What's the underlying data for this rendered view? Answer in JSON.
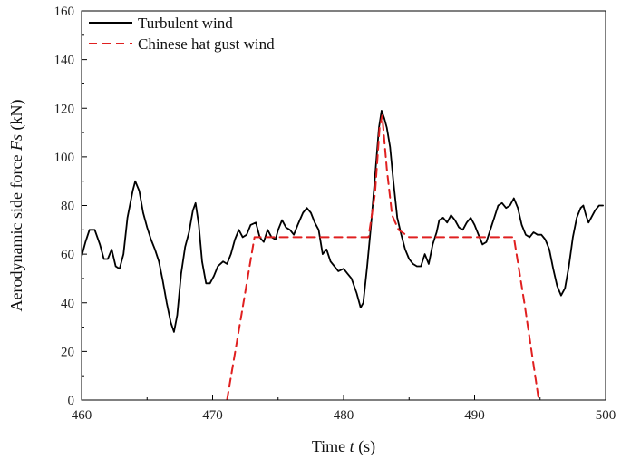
{
  "chart_data": {
    "type": "line",
    "title": "",
    "xlabel_parts": [
      "Time ",
      "t",
      " (s)"
    ],
    "ylabel_parts": [
      "Aerodynamic side force ",
      "Fs",
      " (kN)"
    ],
    "xlim": [
      460,
      500
    ],
    "ylim": [
      0,
      160
    ],
    "xticks": [
      460,
      470,
      480,
      490,
      500
    ],
    "yticks": [
      0,
      20,
      40,
      60,
      80,
      100,
      120,
      140,
      160
    ],
    "grid": false,
    "legend_position": "top-left",
    "series": [
      {
        "name": "Turbulent wind",
        "color": "#000000",
        "dash": "solid",
        "points": [
          [
            460.0,
            59
          ],
          [
            460.3,
            65
          ],
          [
            460.6,
            70
          ],
          [
            461.0,
            70
          ],
          [
            461.4,
            64
          ],
          [
            461.7,
            58
          ],
          [
            462.0,
            58
          ],
          [
            462.3,
            62
          ],
          [
            462.6,
            55
          ],
          [
            462.9,
            54
          ],
          [
            463.2,
            60
          ],
          [
            463.5,
            75
          ],
          [
            463.9,
            86
          ],
          [
            464.1,
            90
          ],
          [
            464.4,
            86
          ],
          [
            464.7,
            77
          ],
          [
            465.0,
            71
          ],
          [
            465.3,
            66
          ],
          [
            465.6,
            62
          ],
          [
            465.9,
            57
          ],
          [
            466.2,
            49
          ],
          [
            466.5,
            40
          ],
          [
            466.8,
            32
          ],
          [
            467.05,
            28
          ],
          [
            467.3,
            35
          ],
          [
            467.6,
            52
          ],
          [
            467.9,
            63
          ],
          [
            468.2,
            69
          ],
          [
            468.5,
            78
          ],
          [
            468.7,
            81
          ],
          [
            468.95,
            72
          ],
          [
            469.2,
            57
          ],
          [
            469.5,
            48
          ],
          [
            469.8,
            48
          ],
          [
            470.1,
            51
          ],
          [
            470.4,
            55
          ],
          [
            470.8,
            57
          ],
          [
            471.1,
            56
          ],
          [
            471.4,
            60
          ],
          [
            471.7,
            66
          ],
          [
            472.0,
            70
          ],
          [
            472.3,
            67
          ],
          [
            472.6,
            68
          ],
          [
            472.9,
            72
          ],
          [
            473.3,
            73
          ],
          [
            473.6,
            67
          ],
          [
            473.9,
            65
          ],
          [
            474.2,
            70
          ],
          [
            474.5,
            67
          ],
          [
            474.8,
            66
          ],
          [
            475.0,
            70
          ],
          [
            475.3,
            74
          ],
          [
            475.6,
            71
          ],
          [
            475.9,
            70
          ],
          [
            476.2,
            68
          ],
          [
            476.5,
            72
          ],
          [
            476.9,
            77
          ],
          [
            477.2,
            79
          ],
          [
            477.5,
            77
          ],
          [
            477.8,
            73
          ],
          [
            478.1,
            70
          ],
          [
            478.4,
            60
          ],
          [
            478.7,
            62
          ],
          [
            479.0,
            57
          ],
          [
            479.3,
            55
          ],
          [
            479.6,
            53
          ],
          [
            480.0,
            54
          ],
          [
            480.3,
            52
          ],
          [
            480.6,
            50
          ],
          [
            481.0,
            44
          ],
          [
            481.3,
            38
          ],
          [
            481.5,
            40
          ],
          [
            481.8,
            55
          ],
          [
            482.1,
            72
          ],
          [
            482.4,
            92
          ],
          [
            482.7,
            112
          ],
          [
            482.9,
            119
          ],
          [
            483.1,
            116
          ],
          [
            483.3,
            112
          ],
          [
            483.55,
            104
          ],
          [
            483.8,
            90
          ],
          [
            484.1,
            75
          ],
          [
            484.4,
            68
          ],
          [
            484.7,
            62
          ],
          [
            485.0,
            58
          ],
          [
            485.3,
            56
          ],
          [
            485.6,
            55
          ],
          [
            485.9,
            55
          ],
          [
            486.2,
            60
          ],
          [
            486.5,
            56
          ],
          [
            486.8,
            64
          ],
          [
            487.1,
            69
          ],
          [
            487.3,
            74
          ],
          [
            487.6,
            75
          ],
          [
            487.9,
            73
          ],
          [
            488.2,
            76
          ],
          [
            488.5,
            74
          ],
          [
            488.8,
            71
          ],
          [
            489.1,
            70
          ],
          [
            489.4,
            73
          ],
          [
            489.7,
            75
          ],
          [
            490.0,
            72
          ],
          [
            490.3,
            68
          ],
          [
            490.6,
            64
          ],
          [
            490.9,
            65
          ],
          [
            491.2,
            70
          ],
          [
            491.5,
            75
          ],
          [
            491.8,
            80
          ],
          [
            492.1,
            81
          ],
          [
            492.4,
            79
          ],
          [
            492.7,
            80
          ],
          [
            493.0,
            83
          ],
          [
            493.3,
            79
          ],
          [
            493.6,
            72
          ],
          [
            493.9,
            68
          ],
          [
            494.2,
            67
          ],
          [
            494.5,
            69
          ],
          [
            494.8,
            68
          ],
          [
            495.1,
            68
          ],
          [
            495.4,
            66
          ],
          [
            495.7,
            62
          ],
          [
            496.0,
            54
          ],
          [
            496.3,
            47
          ],
          [
            496.6,
            43
          ],
          [
            496.9,
            46
          ],
          [
            497.2,
            55
          ],
          [
            497.5,
            67
          ],
          [
            497.8,
            75
          ],
          [
            498.1,
            79
          ],
          [
            498.3,
            80
          ],
          [
            498.5,
            76
          ],
          [
            498.7,
            73
          ],
          [
            498.9,
            75
          ],
          [
            499.2,
            78
          ],
          [
            499.5,
            80
          ],
          [
            499.8,
            80
          ]
        ]
      },
      {
        "name": "Chinese hat gust wind",
        "color": "#e02020",
        "dash": "dashed",
        "points": [
          [
            471.1,
            0
          ],
          [
            472.2,
            35
          ],
          [
            473.2,
            67
          ],
          [
            481.9,
            67
          ],
          [
            482.4,
            85
          ],
          [
            482.75,
            112
          ],
          [
            482.95,
            117
          ],
          [
            483.3,
            95
          ],
          [
            483.7,
            76
          ],
          [
            484.2,
            70
          ],
          [
            485.0,
            67
          ],
          [
            493.0,
            67
          ],
          [
            493.8,
            40
          ],
          [
            494.9,
            0
          ]
        ]
      }
    ]
  }
}
